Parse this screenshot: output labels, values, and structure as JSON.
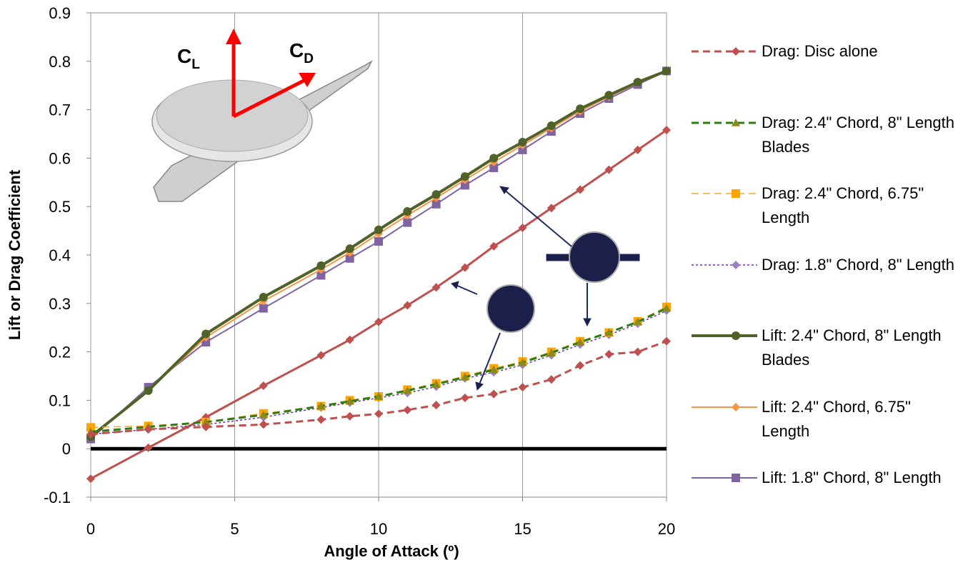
{
  "chart_data": {
    "type": "line",
    "x_label": "Angle of Attack (º)",
    "y_label": "Lift or Drag Coefficient",
    "x": [
      0,
      2,
      4,
      6,
      8,
      9,
      10,
      11,
      12,
      13,
      14,
      15,
      16,
      17,
      18,
      19,
      20
    ],
    "xlim": [
      0,
      20
    ],
    "xticks": [
      0,
      5,
      10,
      15,
      20
    ],
    "ylim": [
      -0.1,
      0.9
    ],
    "yticks": [
      -0.1,
      0,
      0.1,
      0.2,
      0.3,
      0.4,
      0.5,
      0.6,
      0.7,
      0.8,
      0.9
    ],
    "grid": "x",
    "annotations": [
      {
        "text": "C",
        "sub": "L"
      },
      {
        "text": "C",
        "sub": "D"
      }
    ],
    "series": [
      {
        "name": "Drag: Disc alone",
        "color": "#c0504d",
        "marker_color": "#c0504d",
        "marker": "diamond",
        "dash": "dashed",
        "line_width": 3,
        "values": [
          0.03,
          0.04,
          0.045,
          0.05,
          0.06,
          0.067,
          0.072,
          0.08,
          0.09,
          0.105,
          0.113,
          0.127,
          0.143,
          0.172,
          0.195,
          0.2,
          0.222
        ]
      },
      {
        "name": "Drag: 2.4\" Chord, 8\" Length Blades",
        "color": "#2e7d12",
        "marker_color": "#8a8a1e",
        "marker": "triangle",
        "dash": "dashed",
        "line_width": 3,
        "values": [
          0.035,
          0.045,
          0.055,
          0.07,
          0.088,
          0.098,
          0.108,
          0.12,
          0.133,
          0.148,
          0.163,
          0.178,
          0.198,
          0.22,
          0.24,
          0.262,
          0.29
        ]
      },
      {
        "name": "Drag: 2.4\" Chord, 6.75\" Length",
        "color": "#f5a623",
        "marker_color": "#ffa500",
        "marker": "square",
        "dash": "dashed",
        "line_width": 1.5,
        "values": [
          0.044,
          0.047,
          0.055,
          0.073,
          0.088,
          0.1,
          0.108,
          0.122,
          0.135,
          0.15,
          0.166,
          0.18,
          0.2,
          0.222,
          0.24,
          0.263,
          0.293
        ]
      },
      {
        "name": "Drag: 1.8\" Chord, 8\" Length",
        "color": "#7030a0",
        "marker_color": "#9b7fc7",
        "marker": "diamond",
        "dash": "dotted",
        "line_width": 1.5,
        "values": [
          0.03,
          0.04,
          0.05,
          0.065,
          0.085,
          0.095,
          0.105,
          0.115,
          0.128,
          0.145,
          0.158,
          0.173,
          0.193,
          0.215,
          0.235,
          0.258,
          0.285
        ]
      },
      {
        "name": "Lift: 2.4\" Chord, 8\" Length Blades",
        "color": "#4f6228",
        "marker_color": "#4f6228",
        "marker": "circle",
        "dash": "solid",
        "line_width": 4,
        "values": [
          0.025,
          0.12,
          0.237,
          0.313,
          0.378,
          0.413,
          0.452,
          0.49,
          0.525,
          0.562,
          0.6,
          0.633,
          0.667,
          0.702,
          0.73,
          0.757,
          0.78
        ]
      },
      {
        "name": "Lift: 2.4\" Chord, 6.75\" Length",
        "color": "#f79646",
        "marker_color": "#f79646",
        "marker": "diamond",
        "dash": "solid",
        "line_width": 2,
        "values": [
          0.025,
          0.12,
          0.23,
          0.305,
          0.37,
          0.405,
          0.444,
          0.482,
          0.518,
          0.555,
          0.592,
          0.627,
          0.662,
          0.697,
          0.727,
          0.755,
          0.78
        ]
      },
      {
        "name": "Lift: 1.8\" Chord, 8\" Length",
        "color": "#8064a2",
        "marker_color": "#8064a2",
        "marker": "square",
        "dash": "solid",
        "line_width": 2,
        "values": [
          0.02,
          0.127,
          0.22,
          0.29,
          0.358,
          0.393,
          0.428,
          0.467,
          0.505,
          0.544,
          0.58,
          0.617,
          0.655,
          0.692,
          0.723,
          0.752,
          0.78
        ]
      },
      {
        "color": "#c0504d",
        "marker_color": "#c0504d",
        "marker": "diamond",
        "dash": "solid",
        "line_width": 3,
        "values": [
          -0.062,
          0.002,
          0.065,
          0.13,
          0.193,
          0.225,
          0.262,
          0.296,
          0.333,
          0.374,
          0.418,
          0.456,
          0.497,
          0.535,
          0.576,
          0.617,
          0.658
        ]
      }
    ]
  }
}
